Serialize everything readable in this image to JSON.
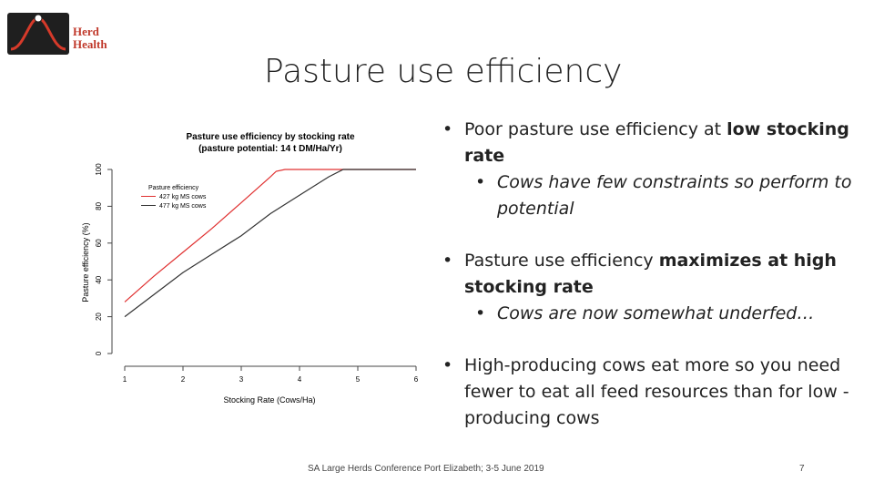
{
  "logo": {
    "line1": "Herd",
    "line2": "Health"
  },
  "slide": {
    "title": "Pasture use efficiency",
    "footer": "SA Large Herds Conference   Port Elizabeth; 3-5 June 2019",
    "page": "7"
  },
  "bullets": [
    {
      "level": 1,
      "parts": [
        {
          "t": "Poor pasture use efficiency at ",
          "b": false
        },
        {
          "t": "low stocking rate",
          "b": true
        }
      ]
    },
    {
      "level": 2,
      "parts": [
        {
          "t": "Cows have few constraints so perform to potential",
          "b": false
        }
      ]
    },
    {
      "level": 1,
      "parts": [
        {
          "t": "Pasture use efficiency ",
          "b": false
        },
        {
          "t": "maximizes at high stocking rate",
          "b": true
        }
      ]
    },
    {
      "level": 2,
      "parts": [
        {
          "t": "Cows are now somewhat underfed…",
          "b": false
        }
      ]
    },
    {
      "level": 1,
      "parts": [
        {
          "t": "High-producing cows eat more so you need fewer to eat all feed resources than for low -producing cows",
          "b": false
        }
      ]
    }
  ],
  "chart_data": {
    "type": "line",
    "title": "Pasture use efficiency by stocking rate",
    "subtitle": "(pasture potential: 14 t DM/Ha/Yr)",
    "xlabel": "Stocking Rate (Cows/Ha)",
    "ylabel": "Pasture efficiency (%)",
    "xlim": [
      1,
      6
    ],
    "ylim": [
      0,
      100
    ],
    "xticks": [
      "1",
      "2",
      "3",
      "4",
      "5",
      "6"
    ],
    "yticks": [
      "0",
      "20",
      "40",
      "60",
      "80",
      "100"
    ],
    "legend_title": "Pasture efficiency",
    "legend_position": "top-left",
    "grid": false,
    "series": [
      {
        "name": "427 kg MS cows",
        "color": "#e03030",
        "x": [
          1,
          1.5,
          2,
          2.5,
          3,
          3.5,
          3.6,
          3.75,
          4,
          5,
          6
        ],
        "y": [
          28,
          42,
          55,
          68,
          82,
          96,
          99,
          100,
          100,
          100,
          100
        ]
      },
      {
        "name": "477 kg MS cows",
        "color": "#333333",
        "x": [
          1,
          1.5,
          2,
          2.5,
          3,
          3.5,
          4,
          4.5,
          4.75,
          5,
          6
        ],
        "y": [
          20,
          32,
          44,
          54,
          64,
          76,
          86,
          96,
          100,
          100,
          100
        ]
      }
    ]
  }
}
